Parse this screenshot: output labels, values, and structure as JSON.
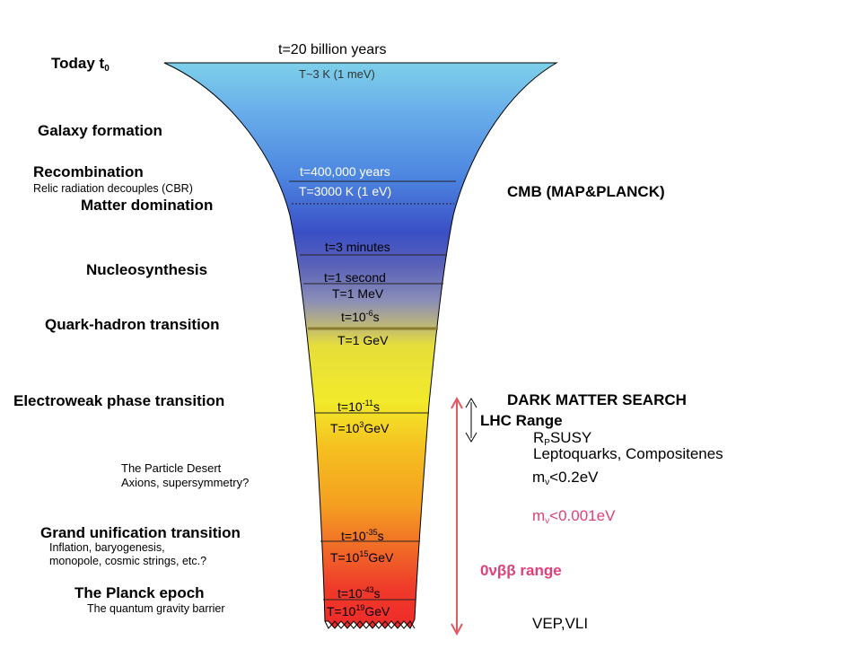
{
  "colors": {
    "top": "#7dd0ea",
    "upper": "#4d86e0",
    "mid_blue": "#3a4fc6",
    "cmb_gray": "#8a8db8",
    "yellow": "#f2ea2a",
    "orange": "#f5a020",
    "red": "#ef2a2a",
    "range_arrow": "#e05a60"
  },
  "left_labels": {
    "today": "Today t",
    "today_sub": "0",
    "galaxy": "Galaxy formation",
    "recombination": "Recombination",
    "relic": "Relic radiation decouples (CBR)",
    "matter": "Matter domination",
    "nucleo": "Nucleosynthesis",
    "quark": "Quark-hadron transition",
    "electroweak": "Electroweak phase transition",
    "desert": "The Particle Desert",
    "axions": "Axions, supersymmetry?",
    "gut": "Grand unification transition",
    "inflation": "Inflation, baryogenesis,",
    "monopole": "monopole, cosmic strings, etc.?",
    "planck": "The Planck epoch",
    "gravity": "The quantum gravity barrier"
  },
  "funnel_labels": {
    "t20": "t=20 billion  years",
    "T3K": "T~3 K  (1 meV)",
    "t400": "t=400,000 years",
    "T3000": "T=3000 K  (1 eV)",
    "t3min": "t=3 minutes",
    "t1s": "t=1 second",
    "T1MeV": "T=1 MeV",
    "t6_pre": "t=10",
    "t6_exp": "-6",
    "t6_post": "s",
    "T1GeV": "T=1 GeV",
    "t11_pre": "t=10",
    "t11_exp": "-11",
    "t11_post": "s",
    "T3_pre": "T=10",
    "T3_exp": "3",
    "T3_post": "GeV",
    "t35_pre": "t=10",
    "t35_exp": "-35",
    "t35_post": "s",
    "T15_pre": "T=10",
    "T15_exp": "15",
    "T15_post": "GeV",
    "t43_pre": "t=10",
    "t43_exp": "-43",
    "t43_post": "s",
    "T19_pre": "T=10",
    "T19_exp": "19",
    "T19_post": "GeV"
  },
  "right_labels": {
    "cmb": "CMB (MAP&PLANCK)",
    "dark": "DARK MATTER SEARCH",
    "lhc": "LHC Range",
    "rp_r": "R",
    "rp_sub": "P",
    "rp_rest": "SUSY",
    "lepto": "Leptoquarks, Compositenes",
    "mv1_m": "m",
    "mv1_sub": "ν",
    "mv1_rest": "<0.2eV",
    "mv2_m": "m",
    "mv2_sub": "ν",
    "mv2_rest": "<0.001eV",
    "onbb": "0νββ range",
    "vep": "VEP,VLI"
  }
}
